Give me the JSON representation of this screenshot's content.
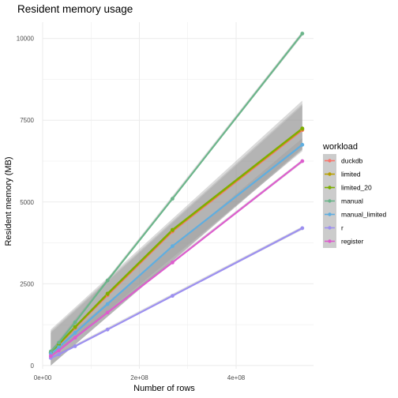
{
  "chart_data": {
    "type": "scatter",
    "title": "Resident memory usage",
    "xlabel": "Number of rows",
    "ylabel": "Resident memory (MB)",
    "xlim": [
      0,
      560000000
    ],
    "ylim": [
      -100,
      10500
    ],
    "x_ticks": [
      0,
      200000000,
      400000000
    ],
    "x_tick_labels": [
      "0e+00",
      "2e+08",
      "4e+08"
    ],
    "y_ticks": [
      0,
      2500,
      5000,
      7500,
      10000
    ],
    "y_tick_labels": [
      "0",
      "2500",
      "5000",
      "7500",
      "10000"
    ],
    "grid": true,
    "legend_title": "workload",
    "legend_position": "right",
    "series": [
      {
        "name": "duckdb",
        "color": "#F8766D",
        "smooth": true,
        "x": [
          16777216,
          33554432,
          67108864,
          134217728,
          268435456,
          536870912
        ],
        "y": [
          380,
          640,
          1150,
          2150,
          4100,
          7200
        ],
        "band": {
          "x": [
            16777216,
            536870912
          ],
          "low": [
            0,
            6600
          ],
          "high": [
            1000,
            7950
          ]
        }
      },
      {
        "name": "limited",
        "color": "#B79F00",
        "smooth": true,
        "x": [
          16777216,
          33554432,
          67108864,
          134217728,
          268435456,
          536870912
        ],
        "y": [
          390,
          650,
          1170,
          2180,
          4130,
          7230
        ],
        "band": {
          "x": [
            16777216,
            536870912
          ],
          "low": [
            0,
            6600
          ],
          "high": [
            1050,
            8000
          ]
        }
      },
      {
        "name": "limited_20",
        "color": "#7CAE00",
        "smooth": true,
        "x": [
          16777216,
          33554432,
          67108864,
          134217728,
          268435456,
          536870912
        ],
        "y": [
          400,
          660,
          1180,
          2200,
          4150,
          7250
        ],
        "band": {
          "x": [
            16777216,
            536870912
          ],
          "low": [
            0,
            6650
          ],
          "high": [
            1100,
            8100
          ]
        }
      },
      {
        "name": "manual",
        "color": "#00BA38",
        "smooth": true,
        "x": [
          16777216,
          33554432,
          67108864,
          134217728,
          268435456,
          536870912
        ],
        "y": [
          430,
          700,
          1320,
          2600,
          5100,
          10150
        ],
        "band": {
          "x": [
            16777216,
            536870912
          ],
          "low": [
            390,
            10080
          ],
          "high": [
            470,
            10220
          ]
        }
      },
      {
        "name": "manual_limited",
        "color": "#00BFC4",
        "smooth": true,
        "x": [
          16777216,
          33554432,
          67108864,
          134217728,
          268435456,
          536870912
        ],
        "y": [
          360,
          560,
          1000,
          1880,
          3650,
          6750
        ],
        "band": {
          "x": [
            16777216,
            536870912
          ],
          "low": [
            250,
            6550
          ],
          "high": [
            470,
            6950
          ]
        }
      },
      {
        "name": "r",
        "color": "#619CFF",
        "smooth": true,
        "x": [
          16777216,
          33554432,
          67108864,
          134217728,
          268435456,
          536870912
        ],
        "y": [
          230,
          340,
          590,
          1100,
          2130,
          4200
        ],
        "band": {
          "x": [
            16777216,
            536870912
          ],
          "low": [
            200,
            4150
          ],
          "high": [
            260,
            4250
          ]
        }
      },
      {
        "name": "register",
        "color": "#F564E3",
        "smooth": true,
        "x": [
          16777216,
          33554432,
          67108864,
          134217728,
          268435456,
          536870912
        ],
        "y": [
          290,
          460,
          850,
          1620,
          3150,
          6250
        ],
        "band": {
          "x": [
            16777216,
            536870912
          ],
          "low": [
            250,
            6200
          ],
          "high": [
            330,
            6300
          ]
        }
      }
    ],
    "line_colors": {
      "duckdb": "#F8766D",
      "limited": "#B79F00",
      "limited_20": "#7CAE00",
      "manual": "#6BB58A",
      "manual_limited": "#5FAEE0",
      "r": "#9C8FF0",
      "register": "#DD5DCE"
    },
    "band_color": "#999999",
    "panel_background": "#ffffff",
    "grid_color": "#EBEBEB"
  }
}
